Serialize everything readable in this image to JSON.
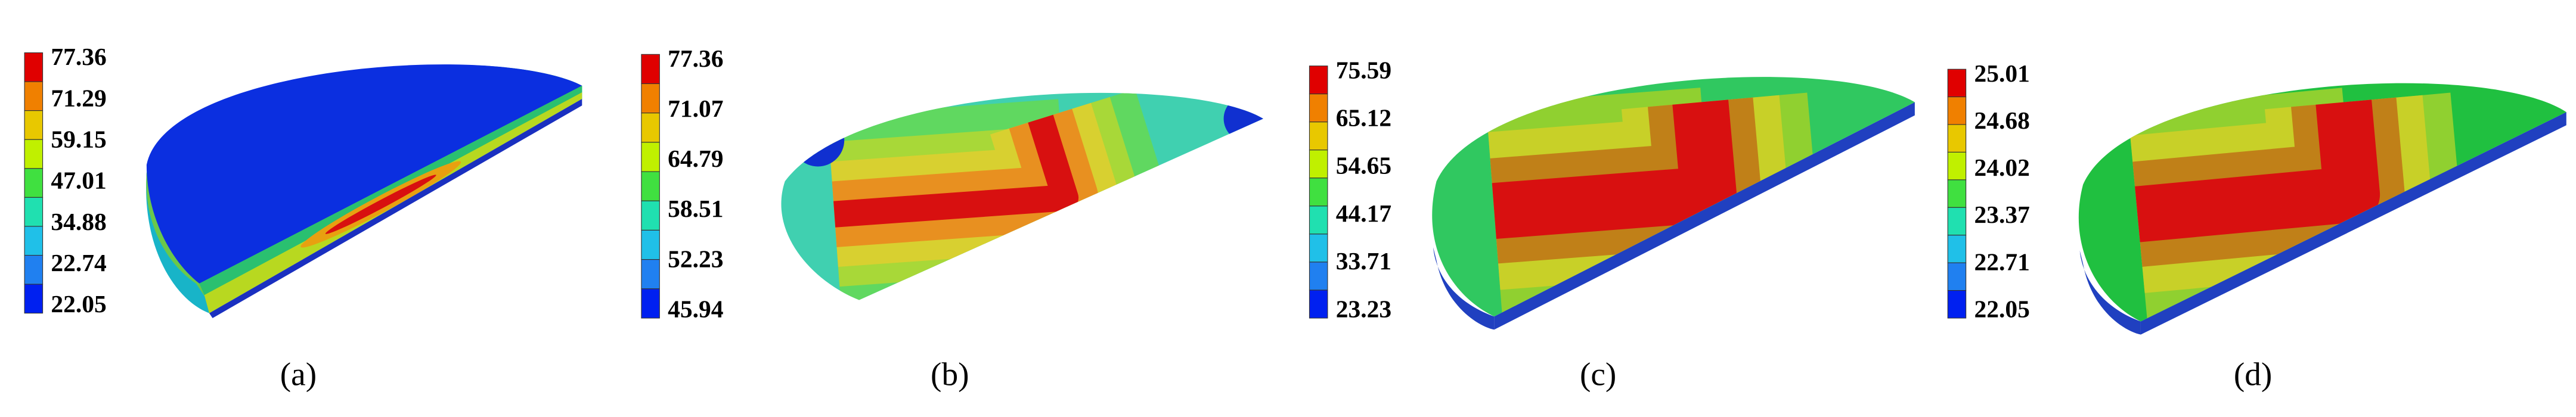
{
  "panels": [
    {
      "legend_labels": [
        "77.36",
        "71.29",
        "59.15",
        "47.01",
        "34.88",
        "22.74",
        "22.05"
      ],
      "caption": "(a)"
    },
    {
      "legend_labels": [
        "77.36",
        "71.07",
        "64.79",
        "58.51",
        "52.23",
        "45.94"
      ],
      "caption": "(b)"
    },
    {
      "legend_labels": [
        "75.59",
        "65.12",
        "54.65",
        "44.17",
        "33.71",
        "23.23"
      ],
      "caption": "(c)"
    },
    {
      "legend_labels": [
        "25.01",
        "24.68",
        "24.02",
        "23.37",
        "22.71",
        "22.05"
      ],
      "caption": "(d)"
    }
  ]
}
